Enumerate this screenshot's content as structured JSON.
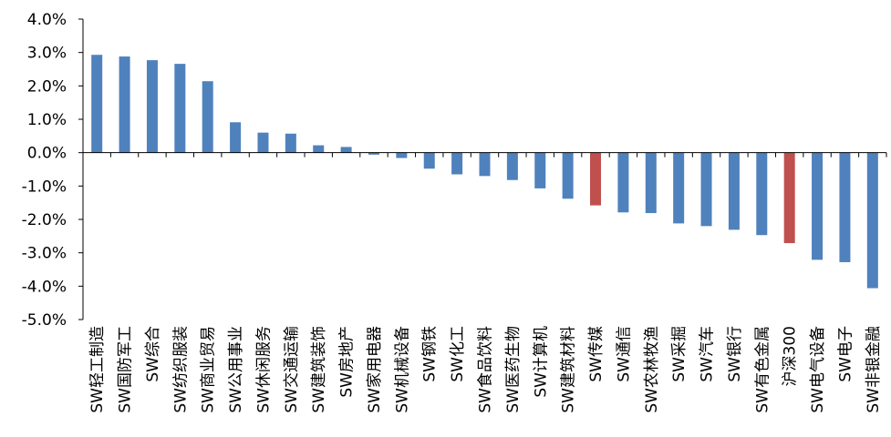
{
  "chart_data": {
    "type": "bar",
    "title": "",
    "xlabel": "",
    "ylabel": "",
    "ylim": [
      -5.0,
      4.0
    ],
    "y_ticks": [
      "4.0%",
      "3.0%",
      "2.0%",
      "1.0%",
      "0.0%",
      "-1.0%",
      "-2.0%",
      "-3.0%",
      "-4.0%",
      "-5.0%"
    ],
    "y_tick_values": [
      4,
      3,
      2,
      1,
      0,
      -1,
      -2,
      -3,
      -4,
      -5
    ],
    "grid": false,
    "legend": "none",
    "colors": {
      "default": "#4f81bd",
      "highlight": "#c0504d",
      "axis": "#000000"
    },
    "categories": [
      "SW轻工制造",
      "SW国防军工",
      "SW综合",
      "SW纺织服装",
      "SW商业贸易",
      "SW公用事业",
      "SW休闲服务",
      "SW交通运输",
      "SW建筑装饰",
      "SW房地产",
      "SW家用电器",
      "SW机械设备",
      "SW钢铁",
      "SW化工",
      "SW食品饮料",
      "SW医药生物",
      "SW计算机",
      "SW建筑材料",
      "SW传媒",
      "SW通信",
      "SW农林牧渔",
      "SW采掘",
      "SW汽车",
      "SW银行",
      "SW有色金属",
      "沪深300",
      "SW电气设备",
      "SW电子",
      "SW非银金融"
    ],
    "values": [
      2.93,
      2.88,
      2.77,
      2.66,
      2.14,
      0.91,
      0.6,
      0.57,
      0.22,
      0.17,
      -0.06,
      -0.16,
      -0.48,
      -0.65,
      -0.7,
      -0.82,
      -1.07,
      -1.38,
      -1.58,
      -1.79,
      -1.81,
      -2.12,
      -2.2,
      -2.31,
      -2.47,
      -2.71,
      -3.21,
      -3.28,
      -4.06
    ],
    "highlighted": [
      "SW传媒",
      "沪深300"
    ]
  }
}
